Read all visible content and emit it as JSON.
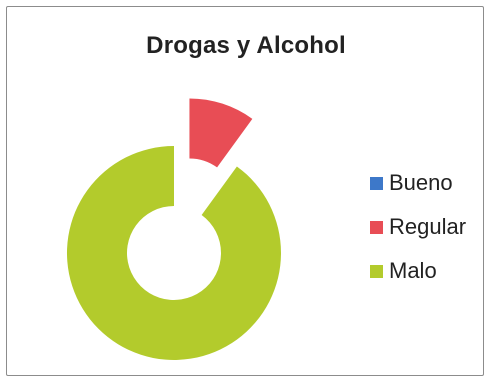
{
  "chart_data": {
    "type": "pie",
    "donut": true,
    "title": "Drogas y Alcohol",
    "categories": [
      "Bueno",
      "Regular",
      "Malo"
    ],
    "values": [
      0,
      10,
      90
    ],
    "colors": [
      "#3d78c9",
      "#e84d55",
      "#b3cb2c"
    ],
    "exploded_slice": "Regular",
    "legend_position": "right"
  }
}
